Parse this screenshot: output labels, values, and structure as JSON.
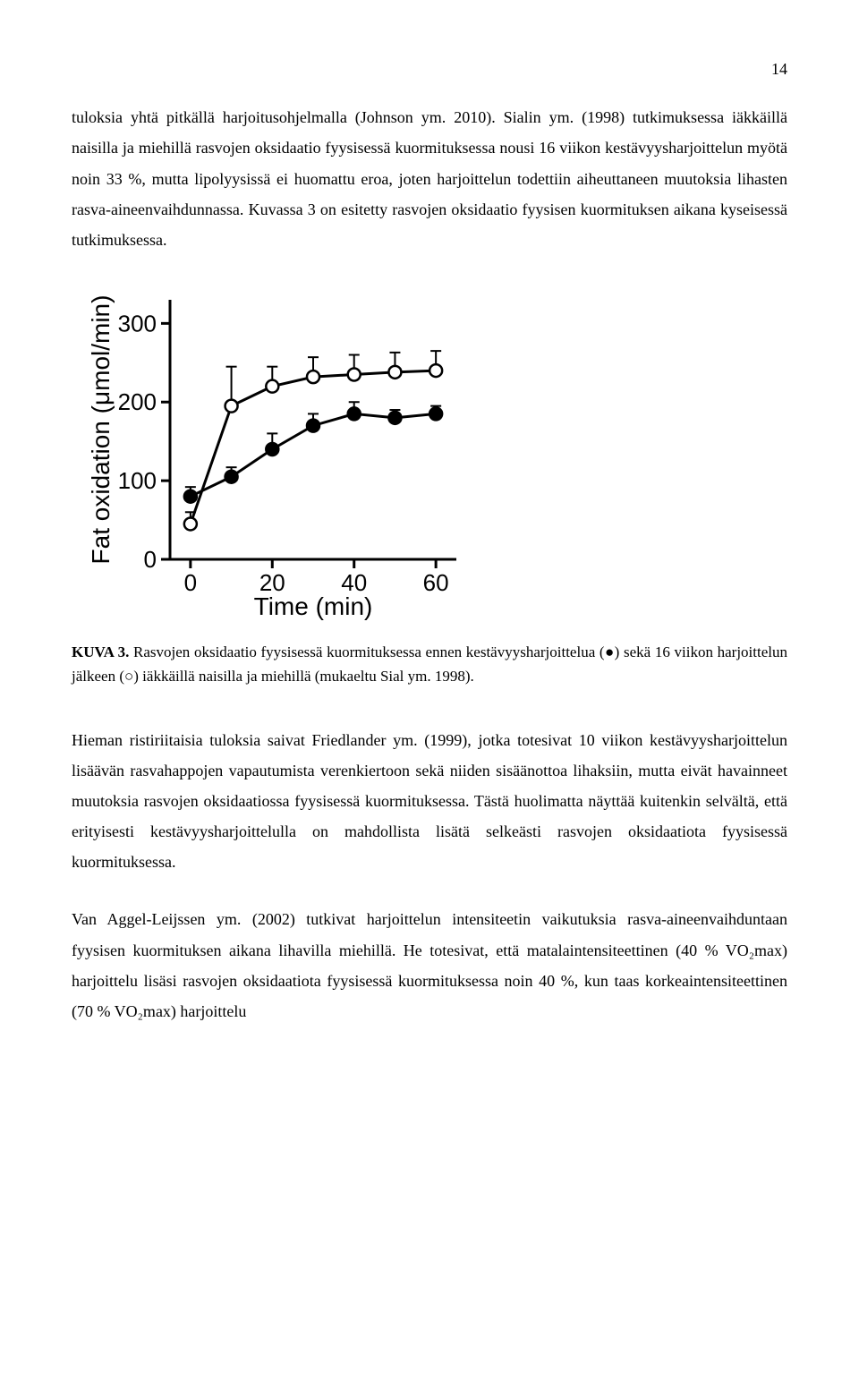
{
  "page_number": "14",
  "paragraph1": "tuloksia yhtä pitkällä harjoitusohjelmalla (Johnson ym. 2010). Sialin ym. (1998) tutkimuksessa iäkkäillä naisilla ja miehillä rasvojen oksidaatio fyysisessä kuormituksessa nousi 16 viikon kestävyysharjoittelun myötä noin 33 %, mutta lipolyysissä ei huomattu eroa, joten harjoittelun todettiin aiheuttaneen muutoksia lihasten rasva-aineenvaihdunnassa. Kuvassa 3 on esitetty rasvojen oksidaatio fyysisen kuormituksen aikana kyseisessä tutkimuksessa.",
  "figure_caption_label": "KUVA 3. ",
  "figure_caption_text": "Rasvojen oksidaatio fyysisessä kuormituksessa ennen kestävyysharjoittelua (●) sekä 16 viikon harjoittelun jälkeen (○) iäkkäillä naisilla ja miehillä (mukaeltu Sial ym. 1998).",
  "paragraph2": "Hieman ristiriitaisia tuloksia saivat Friedlander ym. (1999), jotka totesivat 10 viikon kestävyysharjoittelun lisäävän rasvahappojen vapautumista verenkiertoon sekä niiden sisäänottoa lihaksiin, mutta eivät havainneet muutoksia rasvojen oksidaatiossa fyysisessä kuormituksessa. Tästä huolimatta näyttää kuitenkin selvältä, että erityisesti kestävyysharjoittelulla on mahdollista lisätä selkeästi rasvojen oksidaatiota fyysisessä kuormituksessa.",
  "paragraph3": "Van Aggel-Leijssen ym. (2002) tutkivat harjoittelun intensiteetin vaikutuksia rasva-aineenvaihduntaan fyysisen kuormituksen aikana lihavilla miehillä. He totesivat, että matalaintensiteettinen (40 % VO₂max) harjoittelu lisäsi rasvojen oksidaatiota fyysisessä kuormituksessa noin 40 %, kun taas korkeaintensiteettinen (70 % VO₂max) harjoittelu",
  "chart": {
    "type": "line",
    "ylabel": "Fat oxidation (μmol/min)",
    "xlabel": "Time (min)",
    "x_ticks": [
      0,
      20,
      40,
      60
    ],
    "y_ticks": [
      0,
      100,
      200,
      300
    ],
    "xlim": [
      -5,
      65
    ],
    "ylim": [
      0,
      330
    ],
    "axis_color": "#000000",
    "line_color": "#000000",
    "background_color": "#ffffff",
    "line_width": 3,
    "marker_size": 7,
    "tick_font_size": 26,
    "label_font_size": 28,
    "series_filled": {
      "marker": "filled-circle",
      "x": [
        0,
        10,
        20,
        30,
        40,
        50,
        60
      ],
      "y": [
        80,
        105,
        140,
        170,
        185,
        180,
        185
      ],
      "err_up": [
        12,
        12,
        20,
        15,
        15,
        10,
        10
      ]
    },
    "series_open": {
      "marker": "open-circle",
      "x": [
        0,
        10,
        20,
        30,
        40,
        50,
        60
      ],
      "y": [
        45,
        195,
        220,
        232,
        235,
        238,
        240
      ],
      "err_up": [
        15,
        50,
        25,
        25,
        25,
        25,
        25
      ]
    }
  }
}
